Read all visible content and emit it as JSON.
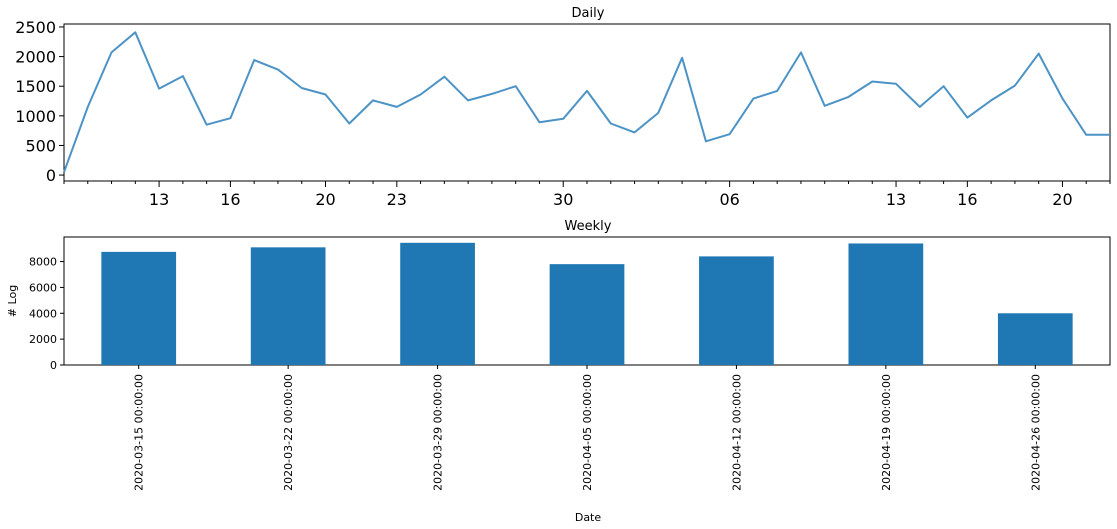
{
  "chart_data": [
    {
      "type": "line",
      "title": "Daily",
      "xlabel": "",
      "ylabel": "",
      "ylim": [
        -100,
        2550
      ],
      "yticks": [
        0,
        500,
        1000,
        1500,
        2000,
        2500
      ],
      "x_tick_labels": [
        "16",
        "23",
        "30",
        "06",
        "13",
        "20"
      ],
      "x": [
        "2020-03-09",
        "2020-03-10",
        "2020-03-11",
        "2020-03-12",
        "2020-03-13",
        "2020-03-14",
        "2020-03-15",
        "2020-03-16",
        "2020-03-17",
        "2020-03-18",
        "2020-03-19",
        "2020-03-20",
        "2020-03-21",
        "2020-03-22",
        "2020-03-23",
        "2020-03-24",
        "2020-03-25",
        "2020-03-26",
        "2020-03-27",
        "2020-03-28",
        "2020-03-29",
        "2020-03-30",
        "2020-03-31",
        "2020-04-01",
        "2020-04-02",
        "2020-04-03",
        "2020-04-04",
        "2020-04-05",
        "2020-04-06",
        "2020-04-07",
        "2020-04-08",
        "2020-04-09",
        "2020-04-10",
        "2020-04-11",
        "2020-04-12",
        "2020-04-13",
        "2020-04-14",
        "2020-04-15",
        "2020-04-16",
        "2020-04-17",
        "2020-04-18",
        "2020-04-19",
        "2020-04-20",
        "2020-04-21",
        "2020-04-22"
      ],
      "values": [
        50,
        1150,
        2070,
        2410,
        1460,
        1670,
        850,
        960,
        1940,
        1780,
        1470,
        1360,
        870,
        1260,
        1150,
        1360,
        1660,
        1260,
        1370,
        1500,
        890,
        950,
        1420,
        870,
        720,
        1050,
        1980,
        570,
        690,
        1290,
        1420,
        2070,
        1170,
        1320,
        1580,
        1540,
        1150,
        1500,
        970,
        1260,
        1510,
        2050,
        1290,
        680,
        680
      ],
      "color": "#4c93c6"
    },
    {
      "type": "bar",
      "title": "Weekly",
      "xlabel": "Date",
      "ylabel": "# Log",
      "ylim": [
        0,
        9900
      ],
      "yticks": [
        0,
        2000,
        4000,
        6000,
        8000
      ],
      "categories": [
        "2020-03-15 00:00:00",
        "2020-03-22 00:00:00",
        "2020-03-29 00:00:00",
        "2020-04-05 00:00:00",
        "2020-04-12 00:00:00",
        "2020-04-19 00:00:00",
        "2020-04-26 00:00:00"
      ],
      "values": [
        8750,
        9100,
        9450,
        7800,
        8400,
        9400,
        4000
      ],
      "color": "#1f77b4"
    }
  ]
}
